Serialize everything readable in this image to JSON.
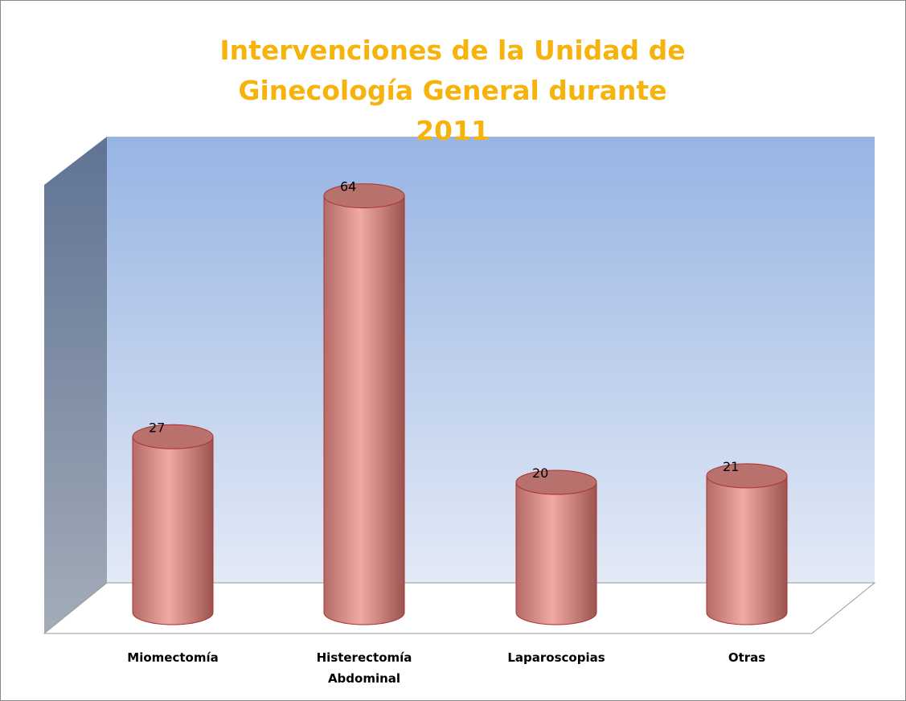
{
  "chart_data": {
    "type": "bar3d",
    "title": "Intervenciones de la Unidad de  Ginecología General durante 2011",
    "categories": [
      "Miomectomía",
      "Histerectomía Abdominal",
      "Laparoscopias",
      "Otras"
    ],
    "values": [
      27,
      64,
      20,
      21
    ],
    "color": "#e8a09c"
  }
}
